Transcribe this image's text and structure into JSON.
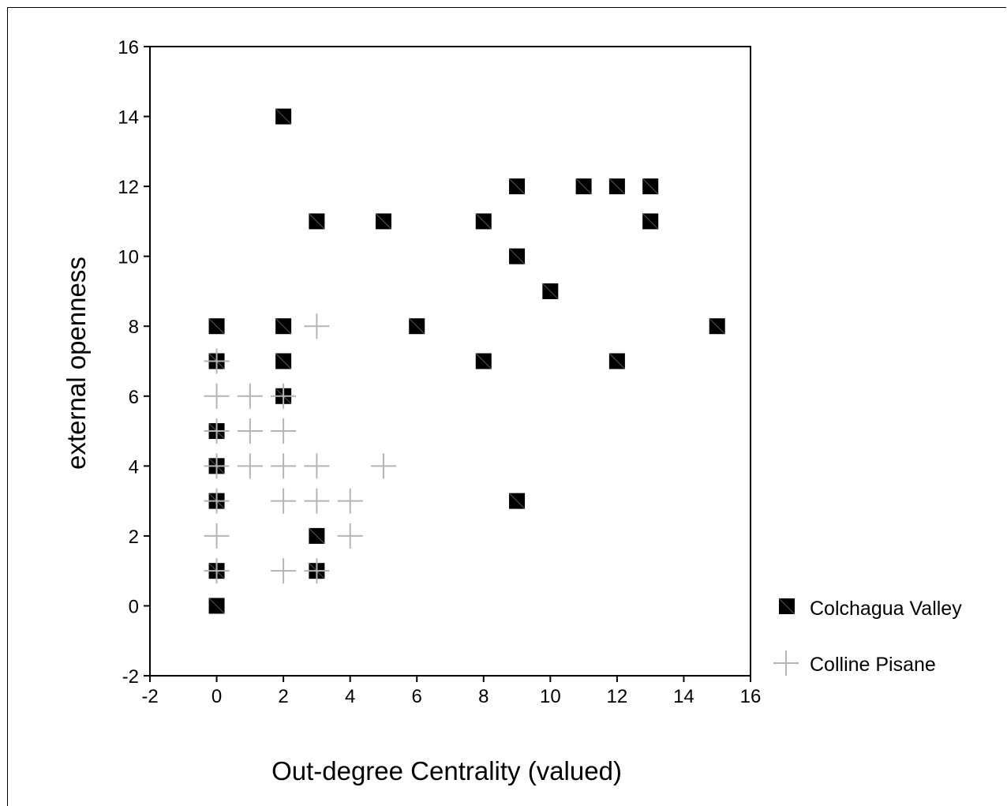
{
  "chart_data": {
    "type": "scatter",
    "title": "",
    "xlabel": "Out-degree Centrality (valued)",
    "ylabel": "external openness",
    "xlim": [
      -2,
      16
    ],
    "ylim": [
      -2,
      16
    ],
    "xticks": [
      -2,
      0,
      2,
      4,
      6,
      8,
      10,
      12,
      14,
      16
    ],
    "yticks": [
      -2,
      0,
      2,
      4,
      6,
      8,
      10,
      12,
      14,
      16
    ],
    "grid": false,
    "legend_position": "bottom-right, outside plot",
    "series": [
      {
        "name": "Colchagua Valley",
        "marker": "filled-square",
        "color": "#000000",
        "points": [
          [
            2,
            14
          ],
          [
            9,
            12
          ],
          [
            11,
            12
          ],
          [
            12,
            12
          ],
          [
            13,
            12
          ],
          [
            3,
            11
          ],
          [
            5,
            11
          ],
          [
            8,
            11
          ],
          [
            13,
            11
          ],
          [
            9,
            10
          ],
          [
            10,
            9
          ],
          [
            0,
            8
          ],
          [
            2,
            8
          ],
          [
            6,
            8
          ],
          [
            15,
            8
          ],
          [
            0,
            7
          ],
          [
            2,
            7
          ],
          [
            8,
            7
          ],
          [
            12,
            7
          ],
          [
            2,
            6
          ],
          [
            0,
            5
          ],
          [
            0,
            4
          ],
          [
            0,
            3
          ],
          [
            9,
            3
          ],
          [
            3,
            2
          ],
          [
            0,
            1
          ],
          [
            3,
            1
          ],
          [
            0,
            0
          ]
        ]
      },
      {
        "name": "Colline Pisane",
        "marker": "plus",
        "color": "#b4b4b4",
        "points": [
          [
            3,
            8
          ],
          [
            0,
            7
          ],
          [
            0,
            6
          ],
          [
            1,
            6
          ],
          [
            2,
            6
          ],
          [
            0,
            5
          ],
          [
            1,
            5
          ],
          [
            2,
            5
          ],
          [
            0,
            4
          ],
          [
            1,
            4
          ],
          [
            2,
            4
          ],
          [
            3,
            4
          ],
          [
            5,
            4
          ],
          [
            0,
            3
          ],
          [
            2,
            3
          ],
          [
            3,
            3
          ],
          [
            4,
            3
          ],
          [
            0,
            2
          ],
          [
            4,
            2
          ],
          [
            0,
            1
          ],
          [
            2,
            1
          ],
          [
            3,
            1
          ]
        ]
      }
    ]
  }
}
